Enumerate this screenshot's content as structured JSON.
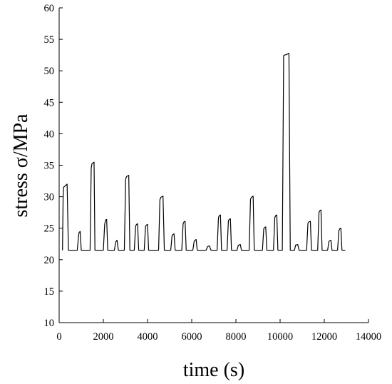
{
  "chart_data": {
    "type": "line",
    "xlabel": "time (s)",
    "ylabel": "stress σ/MPa",
    "xlim": [
      0,
      14000
    ],
    "ylim": [
      10,
      60
    ],
    "xticks": [
      0,
      2000,
      4000,
      6000,
      8000,
      10000,
      12000,
      14000
    ],
    "yticks": [
      10,
      15,
      20,
      25,
      30,
      35,
      40,
      45,
      50,
      55,
      60
    ],
    "grid": false,
    "baseline": 21.5,
    "series": [
      {
        "color": "#000000",
        "points": [
          [
            150,
            21.5
          ],
          [
            180,
            30.0
          ],
          [
            200,
            31.5
          ],
          [
            300,
            31.8
          ],
          [
            360,
            32.0
          ],
          [
            420,
            21.5
          ],
          [
            820,
            21.5
          ],
          [
            870,
            23.5
          ],
          [
            900,
            24.3
          ],
          [
            950,
            24.5
          ],
          [
            1000,
            21.5
          ],
          [
            1400,
            21.5
          ],
          [
            1450,
            34.5
          ],
          [
            1480,
            35.2
          ],
          [
            1580,
            35.5
          ],
          [
            1620,
            21.5
          ],
          [
            2000,
            21.5
          ],
          [
            2060,
            25.6
          ],
          [
            2100,
            26.3
          ],
          [
            2150,
            26.4
          ],
          [
            2200,
            21.5
          ],
          [
            2500,
            21.5
          ],
          [
            2560,
            22.8
          ],
          [
            2620,
            23.1
          ],
          [
            2680,
            21.5
          ],
          [
            2950,
            21.5
          ],
          [
            3010,
            32.8
          ],
          [
            3050,
            33.2
          ],
          [
            3150,
            33.4
          ],
          [
            3200,
            21.5
          ],
          [
            3400,
            21.5
          ],
          [
            3460,
            25.3
          ],
          [
            3500,
            25.6
          ],
          [
            3550,
            25.7
          ],
          [
            3600,
            21.5
          ],
          [
            3850,
            21.5
          ],
          [
            3910,
            25.3
          ],
          [
            3950,
            25.5
          ],
          [
            4000,
            25.6
          ],
          [
            4050,
            21.5
          ],
          [
            4500,
            21.5
          ],
          [
            4560,
            29.5
          ],
          [
            4600,
            29.9
          ],
          [
            4700,
            30.1
          ],
          [
            4760,
            21.5
          ],
          [
            5050,
            21.5
          ],
          [
            5110,
            23.8
          ],
          [
            5150,
            24.0
          ],
          [
            5200,
            24.1
          ],
          [
            5250,
            21.5
          ],
          [
            5550,
            21.5
          ],
          [
            5610,
            25.7
          ],
          [
            5650,
            26.0
          ],
          [
            5700,
            26.1
          ],
          [
            5750,
            21.5
          ],
          [
            6050,
            21.5
          ],
          [
            6110,
            22.9
          ],
          [
            6150,
            23.1
          ],
          [
            6200,
            23.2
          ],
          [
            6250,
            21.5
          ],
          [
            6650,
            21.5
          ],
          [
            6720,
            22.1
          ],
          [
            6800,
            22.2
          ],
          [
            6870,
            21.5
          ],
          [
            7150,
            21.5
          ],
          [
            7210,
            26.7
          ],
          [
            7250,
            27.0
          ],
          [
            7300,
            27.1
          ],
          [
            7350,
            21.5
          ],
          [
            7600,
            21.5
          ],
          [
            7660,
            26.2
          ],
          [
            7700,
            26.4
          ],
          [
            7750,
            26.5
          ],
          [
            7800,
            21.5
          ],
          [
            8050,
            21.5
          ],
          [
            8110,
            22.3
          ],
          [
            8200,
            22.4
          ],
          [
            8250,
            21.5
          ],
          [
            8600,
            21.5
          ],
          [
            8660,
            29.6
          ],
          [
            8700,
            29.9
          ],
          [
            8780,
            30.1
          ],
          [
            8830,
            21.5
          ],
          [
            9200,
            21.5
          ],
          [
            9260,
            24.9
          ],
          [
            9300,
            25.1
          ],
          [
            9350,
            25.2
          ],
          [
            9400,
            21.5
          ],
          [
            9700,
            21.5
          ],
          [
            9760,
            26.7
          ],
          [
            9800,
            27.0
          ],
          [
            9850,
            27.1
          ],
          [
            9900,
            21.5
          ],
          [
            10100,
            21.5
          ],
          [
            10160,
            52.4
          ],
          [
            10200,
            52.5
          ],
          [
            10300,
            52.6
          ],
          [
            10400,
            52.8
          ],
          [
            10460,
            21.5
          ],
          [
            10650,
            21.5
          ],
          [
            10700,
            22.3
          ],
          [
            10800,
            22.4
          ],
          [
            10860,
            21.5
          ],
          [
            11200,
            21.5
          ],
          [
            11260,
            25.8
          ],
          [
            11300,
            26.0
          ],
          [
            11370,
            26.1
          ],
          [
            11420,
            21.5
          ],
          [
            11700,
            21.5
          ],
          [
            11760,
            27.5
          ],
          [
            11800,
            27.8
          ],
          [
            11850,
            27.9
          ],
          [
            11900,
            21.5
          ],
          [
            12150,
            21.5
          ],
          [
            12210,
            22.9
          ],
          [
            12250,
            23.0
          ],
          [
            12300,
            23.1
          ],
          [
            12350,
            21.5
          ],
          [
            12600,
            21.5
          ],
          [
            12660,
            24.6
          ],
          [
            12700,
            24.9
          ],
          [
            12750,
            25.0
          ],
          [
            12800,
            21.5
          ],
          [
            12950,
            21.5
          ]
        ]
      }
    ]
  }
}
